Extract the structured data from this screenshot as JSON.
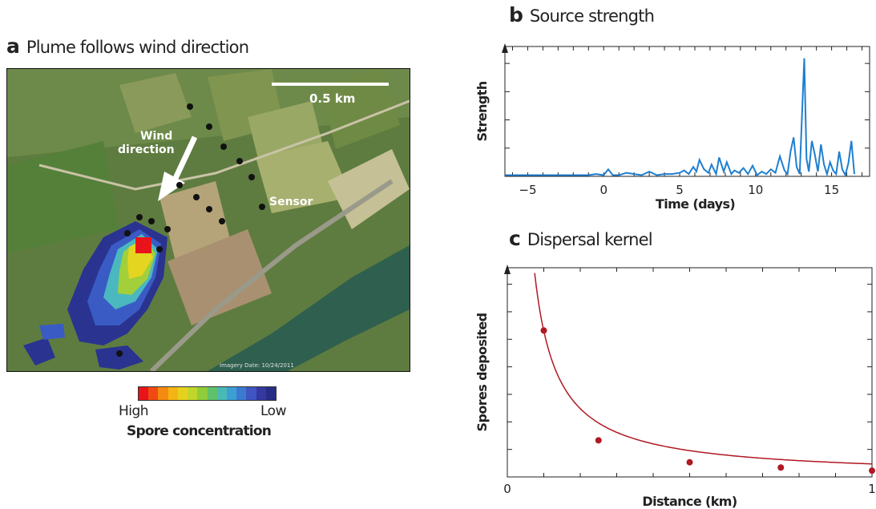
{
  "panel_a": {
    "letter": "a",
    "title": "Plume follows wind direction",
    "scale_label": "0.5 km",
    "wind_label_line1": "Wind",
    "wind_label_line2": "direction",
    "sensor_label": "Sensor",
    "colorbar": {
      "high_label": "High",
      "low_label": "Low",
      "title": "Spore concentration",
      "colors": [
        "#e8141a",
        "#f04a12",
        "#f58a10",
        "#f4b514",
        "#e6d21e",
        "#c2d62a",
        "#8fcd3a",
        "#5fc26a",
        "#49b9b5",
        "#3b9fd4",
        "#3b7ad0",
        "#3e55c2",
        "#34389f",
        "#272c86"
      ]
    }
  },
  "panel_b": {
    "letter": "b",
    "title": "Source strength"
  },
  "panel_c": {
    "letter": "c",
    "title": "Dispersal kernel"
  },
  "chart_data": [
    {
      "type": "line",
      "xlabel": "Time (days)",
      "ylabel": "Strength",
      "xlim": [
        -6.5,
        17.5
      ],
      "xticks": [
        -5,
        0,
        5,
        10,
        15
      ],
      "color": "#1f7fd0",
      "x": [
        -6.5,
        -6,
        -5.5,
        -5,
        -4.5,
        -4,
        -3.5,
        -3,
        -2.5,
        -2,
        -1.5,
        -1,
        -0.5,
        0,
        0.3,
        0.6,
        1,
        1.5,
        2,
        2.5,
        3,
        3.5,
        4,
        4.5,
        5,
        5.3,
        5.6,
        5.9,
        6.1,
        6.3,
        6.6,
        6.9,
        7.1,
        7.4,
        7.6,
        7.9,
        8.1,
        8.4,
        8.6,
        8.9,
        9.2,
        9.5,
        9.8,
        10.1,
        10.4,
        10.7,
        11,
        11.3,
        11.6,
        11.9,
        12.1,
        12.3,
        12.5,
        12.7,
        12.9,
        13.0,
        13.1,
        13.2,
        13.35,
        13.5,
        13.7,
        13.9,
        14.1,
        14.3,
        14.5,
        14.7,
        14.9,
        15.1,
        15.3,
        15.5,
        15.7,
        15.9,
        16.1,
        16.3,
        16.5
      ],
      "y": [
        0.01,
        0.01,
        0.01,
        0.01,
        0.01,
        0.01,
        0.01,
        0.01,
        0.01,
        0.01,
        0.01,
        0.01,
        0.02,
        0.01,
        0.06,
        0.01,
        0.01,
        0.03,
        0.02,
        0.01,
        0.04,
        0.01,
        0.02,
        0.02,
        0.03,
        0.05,
        0.02,
        0.08,
        0.04,
        0.14,
        0.06,
        0.03,
        0.1,
        0.02,
        0.16,
        0.04,
        0.12,
        0.02,
        0.05,
        0.03,
        0.07,
        0.02,
        0.09,
        0.01,
        0.04,
        0.02,
        0.06,
        0.03,
        0.17,
        0.05,
        0.02,
        0.21,
        0.33,
        0.08,
        0.02,
        0.35,
        0.68,
        1.0,
        0.15,
        0.04,
        0.3,
        0.18,
        0.04,
        0.27,
        0.1,
        0.02,
        0.12,
        0.05,
        0.02,
        0.21,
        0.06,
        0.01,
        0.11,
        0.3,
        0.02
      ]
    },
    {
      "type": "line",
      "xlabel": "Distance (km)",
      "ylabel": "Spores deposited",
      "xlim": [
        0,
        1
      ],
      "ylim": [
        0,
        1
      ],
      "xtick_labels": [
        "0",
        "1"
      ],
      "color": "#b01822",
      "points": [
        [
          0.1,
          0.7
        ],
        [
          0.25,
          0.175
        ],
        [
          0.5,
          0.07
        ],
        [
          0.75,
          0.045
        ],
        [
          1.0,
          0.03
        ]
      ]
    }
  ]
}
